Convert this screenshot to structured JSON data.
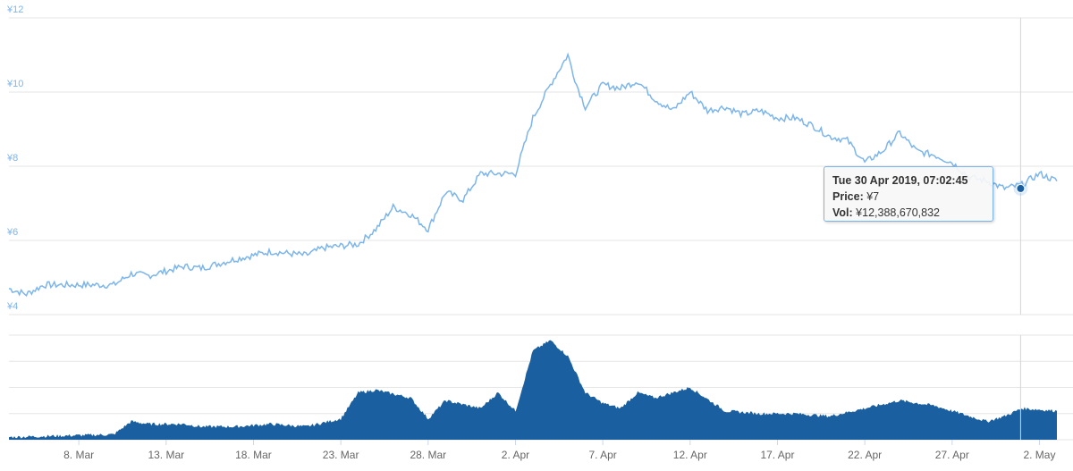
{
  "chart_data": [
    {
      "type": "line",
      "name": "price",
      "yticks": [
        "¥4",
        "¥6",
        "¥8",
        "¥10",
        "¥12"
      ],
      "ylim": [
        4,
        12
      ],
      "x_start": "2019-03-04",
      "x_end": "2019-05-03",
      "color": "#7cb5ec",
      "points": [
        [
          "2019-03-04",
          4.7
        ],
        [
          "2019-03-05",
          4.55
        ],
        [
          "2019-03-06",
          4.8
        ],
        [
          "2019-03-08",
          4.8
        ],
        [
          "2019-03-10",
          4.8
        ],
        [
          "2019-03-11",
          5.1
        ],
        [
          "2019-03-12",
          5.05
        ],
        [
          "2019-03-14",
          5.3
        ],
        [
          "2019-03-15",
          5.25
        ],
        [
          "2019-03-17",
          5.5
        ],
        [
          "2019-03-19",
          5.7
        ],
        [
          "2019-03-21",
          5.6
        ],
        [
          "2019-03-22",
          5.8
        ],
        [
          "2019-03-24",
          5.9
        ],
        [
          "2019-03-25",
          6.3
        ],
        [
          "2019-03-26",
          6.9
        ],
        [
          "2019-03-27",
          6.7
        ],
        [
          "2019-03-28",
          6.3
        ],
        [
          "2019-03-29",
          7.3
        ],
        [
          "2019-03-30",
          7.1
        ],
        [
          "2019-03-31",
          7.8
        ],
        [
          "2019-04-01",
          7.8
        ],
        [
          "2019-04-02",
          7.8
        ],
        [
          "2019-04-03",
          9.3
        ],
        [
          "2019-04-04",
          10.2
        ],
        [
          "2019-04-05",
          11.0
        ],
        [
          "2019-04-05T12:00",
          10.2
        ],
        [
          "2019-04-06",
          9.6
        ],
        [
          "2019-04-07",
          10.2
        ],
        [
          "2019-04-08",
          10.1
        ],
        [
          "2019-04-09",
          10.3
        ],
        [
          "2019-04-10",
          9.8
        ],
        [
          "2019-04-11",
          9.5
        ],
        [
          "2019-04-12",
          10.0
        ],
        [
          "2019-04-13",
          9.5
        ],
        [
          "2019-04-14",
          9.6
        ],
        [
          "2019-04-15",
          9.4
        ],
        [
          "2019-04-16",
          9.5
        ],
        [
          "2019-04-17",
          9.3
        ],
        [
          "2019-04-18",
          9.3
        ],
        [
          "2019-04-19",
          9.1
        ],
        [
          "2019-04-20",
          8.8
        ],
        [
          "2019-04-21",
          8.7
        ],
        [
          "2019-04-22",
          8.1
        ],
        [
          "2019-04-23",
          8.4
        ],
        [
          "2019-04-24",
          8.9
        ],
        [
          "2019-04-25",
          8.4
        ],
        [
          "2019-04-26",
          8.3
        ],
        [
          "2019-04-27",
          8.1
        ],
        [
          "2019-04-28",
          7.7
        ],
        [
          "2019-04-29",
          7.6
        ],
        [
          "2019-04-30",
          7.4
        ],
        [
          "2019-05-01",
          7.5
        ],
        [
          "2019-05-02",
          7.8
        ],
        [
          "2019-05-03",
          7.6
        ]
      ]
    },
    {
      "type": "area",
      "name": "volume",
      "color": "#1a5f9f",
      "ylim": [
        0,
        2.0
      ],
      "points": [
        [
          "2019-03-04",
          0.05
        ],
        [
          "2019-03-10",
          0.1
        ],
        [
          "2019-03-11",
          0.35
        ],
        [
          "2019-03-12",
          0.3
        ],
        [
          "2019-03-14",
          0.3
        ],
        [
          "2019-03-15",
          0.25
        ],
        [
          "2019-03-17",
          0.25
        ],
        [
          "2019-03-19",
          0.3
        ],
        [
          "2019-03-21",
          0.25
        ],
        [
          "2019-03-23",
          0.4
        ],
        [
          "2019-03-24",
          0.9
        ],
        [
          "2019-03-25",
          0.95
        ],
        [
          "2019-03-27",
          0.8
        ],
        [
          "2019-03-28",
          0.4
        ],
        [
          "2019-03-29",
          0.75
        ],
        [
          "2019-03-31",
          0.6
        ],
        [
          "2019-04-01",
          0.9
        ],
        [
          "2019-04-02",
          0.55
        ],
        [
          "2019-04-03",
          1.7
        ],
        [
          "2019-04-04",
          1.9
        ],
        [
          "2019-04-05",
          1.6
        ],
        [
          "2019-04-06",
          0.9
        ],
        [
          "2019-04-07",
          0.7
        ],
        [
          "2019-04-08",
          0.6
        ],
        [
          "2019-04-09",
          0.9
        ],
        [
          "2019-04-10",
          0.8
        ],
        [
          "2019-04-11",
          0.9
        ],
        [
          "2019-04-12",
          1.0
        ],
        [
          "2019-04-14",
          0.55
        ],
        [
          "2019-04-16",
          0.5
        ],
        [
          "2019-04-18",
          0.5
        ],
        [
          "2019-04-20",
          0.45
        ],
        [
          "2019-04-22",
          0.6
        ],
        [
          "2019-04-24",
          0.75
        ],
        [
          "2019-04-26",
          0.65
        ],
        [
          "2019-04-28",
          0.45
        ],
        [
          "2019-04-29",
          0.35
        ],
        [
          "2019-04-30",
          0.45
        ],
        [
          "2019-05-01",
          0.6
        ],
        [
          "2019-05-03",
          0.55
        ]
      ]
    }
  ],
  "xticks": [
    "8. Mar",
    "13. Mar",
    "18. Mar",
    "23. Mar",
    "28. Mar",
    "2. Apr",
    "7. Apr",
    "12. Apr",
    "17. Apr",
    "22. Apr",
    "27. Apr",
    "2. May"
  ],
  "tooltip": {
    "title": "Tue 30 Apr 2019, 07:02:45",
    "price_label": "Price:",
    "price_value": "¥7",
    "vol_label": "Vol:",
    "vol_value": "¥12,388,670,832",
    "point_date": "2019-04-30",
    "point_price": 7.4
  }
}
